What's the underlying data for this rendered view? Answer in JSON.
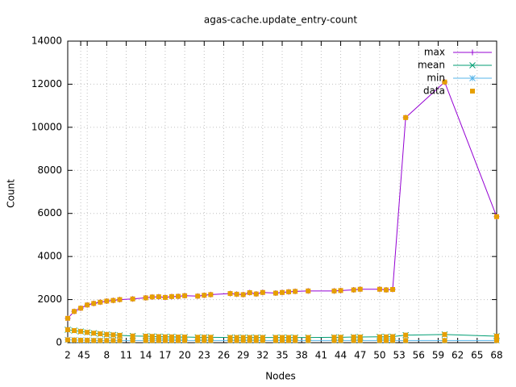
{
  "chart_data": {
    "type": "line",
    "title": "agas-cache.update_entry-count",
    "x_label": "Nodes",
    "y_label": "Count",
    "xlim": [
      2,
      68
    ],
    "ylim": [
      0,
      14000
    ],
    "xticks": [
      2,
      4,
      5,
      8,
      11,
      14,
      17,
      20,
      23,
      26,
      29,
      32,
      35,
      38,
      41,
      44,
      47,
      50,
      53,
      56,
      59,
      62,
      65,
      68
    ],
    "yticks": [
      0,
      2000,
      4000,
      6000,
      8000,
      10000,
      12000,
      14000
    ],
    "grid": true,
    "legend": "top-right",
    "x": [
      2,
      3,
      4,
      5,
      6,
      7,
      8,
      9,
      10,
      12,
      14,
      15,
      16,
      17,
      18,
      19,
      20,
      22,
      23,
      24,
      27,
      28,
      29,
      30,
      31,
      32,
      34,
      35,
      36,
      37,
      39,
      43,
      44,
      46,
      47,
      50,
      51,
      52,
      54,
      60,
      68
    ],
    "series": [
      {
        "name": "max",
        "color": "#9400d3",
        "marker": "plus",
        "values": [
          1130,
          1450,
          1600,
          1750,
          1820,
          1880,
          1930,
          1960,
          2000,
          2030,
          2080,
          2120,
          2130,
          2100,
          2140,
          2150,
          2180,
          2160,
          2200,
          2230,
          2280,
          2250,
          2230,
          2320,
          2260,
          2330,
          2300,
          2330,
          2360,
          2380,
          2400,
          2400,
          2420,
          2450,
          2480,
          2480,
          2450,
          2470,
          10450,
          12100,
          5850
        ]
      },
      {
        "name": "mean",
        "color": "#009e73",
        "marker": "cross",
        "values": [
          600,
          560,
          520,
          480,
          440,
          410,
          380,
          360,
          340,
          310,
          300,
          290,
          280,
          270,
          270,
          260,
          260,
          250,
          250,
          250,
          240,
          240,
          240,
          240,
          240,
          240,
          240,
          240,
          240,
          240,
          240,
          250,
          250,
          260,
          260,
          270,
          270,
          280,
          350,
          380,
          300
        ]
      },
      {
        "name": "min",
        "color": "#56b4e9",
        "marker": "star",
        "values": [
          130,
          120,
          110,
          110,
          100,
          100,
          100,
          100,
          100,
          100,
          100,
          100,
          100,
          100,
          100,
          100,
          100,
          100,
          100,
          100,
          100,
          100,
          100,
          100,
          100,
          100,
          100,
          100,
          100,
          100,
          100,
          100,
          100,
          100,
          100,
          100,
          100,
          100,
          100,
          100,
          100
        ]
      },
      {
        "name": "data",
        "color": "#e69f00",
        "marker": "square",
        "type": "scatter",
        "values": [
          [
            1130,
            600,
            130
          ],
          [
            1450,
            560,
            120
          ],
          [
            1600,
            520,
            110
          ],
          [
            1750,
            480,
            110
          ],
          [
            1820,
            440,
            100
          ],
          [
            1880,
            410,
            100
          ],
          [
            1930,
            380,
            100
          ],
          [
            1960,
            360,
            100
          ],
          [
            2000,
            340,
            100
          ],
          [
            2030,
            310,
            100
          ],
          [
            2080,
            300,
            100
          ],
          [
            2120,
            290,
            100
          ],
          [
            2130,
            280,
            100
          ],
          [
            2100,
            270,
            100
          ],
          [
            2140,
            270,
            100
          ],
          [
            2150,
            260,
            100
          ],
          [
            2180,
            260,
            100
          ],
          [
            2160,
            250,
            100
          ],
          [
            2200,
            250,
            100
          ],
          [
            2230,
            250,
            100
          ],
          [
            2280,
            240,
            100
          ],
          [
            2250,
            240,
            100
          ],
          [
            2230,
            240,
            100
          ],
          [
            2320,
            240,
            100
          ],
          [
            2260,
            240,
            100
          ],
          [
            2330,
            240,
            100
          ],
          [
            2300,
            240,
            100
          ],
          [
            2330,
            240,
            100
          ],
          [
            2360,
            240,
            100
          ],
          [
            2380,
            240,
            100
          ],
          [
            2400,
            240,
            100
          ],
          [
            2400,
            250,
            100
          ],
          [
            2420,
            250,
            100
          ],
          [
            2450,
            260,
            100
          ],
          [
            2480,
            260,
            100
          ],
          [
            2480,
            270,
            100
          ],
          [
            2450,
            270,
            100
          ],
          [
            2470,
            280,
            100
          ],
          [
            10450,
            350,
            100
          ],
          [
            12100,
            380,
            100
          ],
          [
            5850,
            300,
            100
          ]
        ]
      }
    ]
  }
}
